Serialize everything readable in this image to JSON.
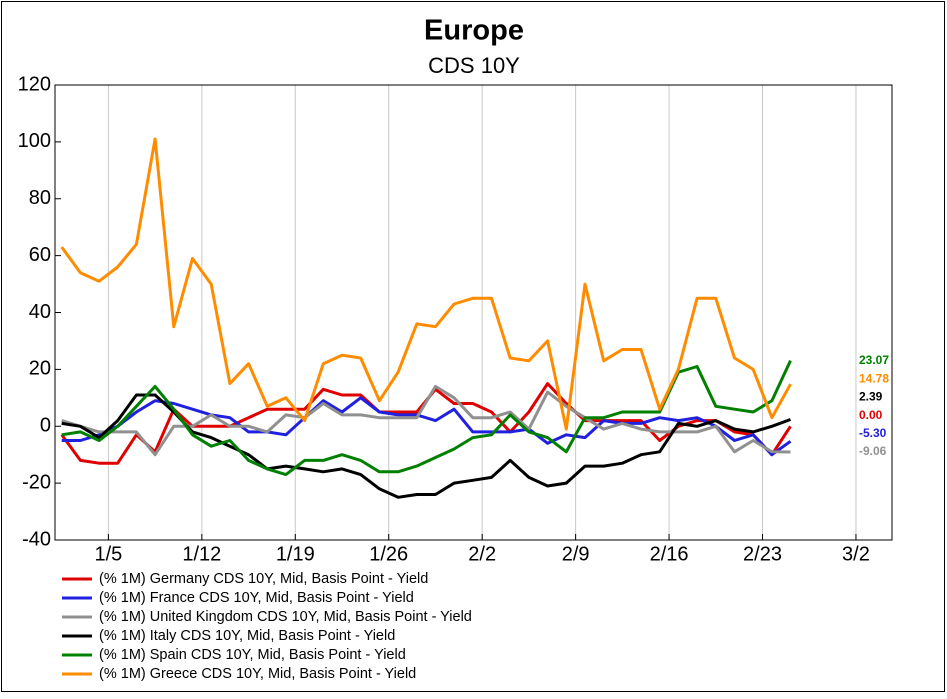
{
  "chart_data": {
    "type": "line",
    "title": "Europe",
    "subtitle": "CDS 10Y",
    "x": [
      1.5,
      2.9,
      4.3,
      5.7,
      7.1,
      8.5,
      9.9,
      11.3,
      12.7,
      14.1,
      15.5,
      16.9,
      18.3,
      19.7,
      21.1,
      22.5,
      23.9,
      25.3,
      26.7,
      28.1,
      29.5,
      30.9,
      32.3,
      33.7,
      35.1,
      36.5,
      37.9,
      39.3,
      40.7,
      42.1,
      43.5,
      44.9,
      46.3,
      47.7,
      49.1,
      50.5,
      51.9,
      53.3,
      54.7,
      56.1
    ],
    "xlim": [
      1,
      63.7
    ],
    "xticks": [
      {
        "value": 5,
        "label": "1/5"
      },
      {
        "value": 12,
        "label": "1/12"
      },
      {
        "value": 19,
        "label": "1/19"
      },
      {
        "value": 26,
        "label": "1/26"
      },
      {
        "value": 33,
        "label": "2/2"
      },
      {
        "value": 40,
        "label": "2/9"
      },
      {
        "value": 47,
        "label": "2/16"
      },
      {
        "value": 54,
        "label": "2/23"
      },
      {
        "value": 61,
        "label": "3/2"
      }
    ],
    "ylim": [
      -40,
      120
    ],
    "yticks": [
      -40,
      -20,
      0,
      20,
      40,
      60,
      80,
      100,
      120
    ],
    "grid": "x",
    "series": [
      {
        "name": "(% 1M) Germany CDS 10Y, Mid, Basis Point - Yield",
        "color": "#e00000",
        "end_label": "0.00",
        "values": [
          -3,
          -12,
          -13,
          -13,
          -3,
          -9,
          6,
          0,
          0,
          0,
          3,
          6,
          6,
          6,
          13,
          11,
          11,
          5,
          5,
          5,
          13,
          8,
          8,
          5,
          -2,
          5,
          15,
          8,
          2,
          2,
          2,
          2,
          -5,
          0,
          2,
          2,
          -2,
          -3,
          -10,
          0
        ]
      },
      {
        "name": "(% 1M) France CDS 10Y, Mid, Basis Point - Yield",
        "color": "#2020e0",
        "end_label": "-5.30",
        "values": [
          -5,
          -5,
          -3,
          0,
          5,
          9,
          8,
          6,
          4,
          3,
          -2,
          -2,
          -3,
          3,
          9,
          5,
          10,
          5,
          4,
          4,
          2,
          6,
          -2,
          -2,
          -2,
          -1,
          -6,
          -3,
          -4,
          2,
          1,
          1,
          3,
          2,
          3,
          0,
          -5,
          -3,
          -10,
          -5.3
        ]
      },
      {
        "name": "(% 1M) United Kingdom CDS 10Y, Mid, Basis Point - Yield",
        "color": "#909090",
        "end_label": "-9.06",
        "values": [
          2,
          0,
          -2,
          -2,
          -2,
          -10,
          0,
          0,
          4,
          0,
          0,
          -2,
          4,
          3,
          8,
          4,
          4,
          3,
          3,
          3,
          14,
          10,
          3,
          3,
          5,
          -1,
          12,
          7,
          3,
          -1,
          1,
          -1,
          -2,
          -2,
          -2,
          0,
          -9,
          -5,
          -9,
          -9.06
        ]
      },
      {
        "name": "(% 1M) Italy CDS 10Y, Mid, Basis Point - Yield",
        "color": "#000000",
        "end_label": "2.39",
        "values": [
          1,
          0,
          -4,
          2,
          11,
          11,
          5,
          -2,
          -4,
          -7,
          -10,
          -15,
          -14,
          -15,
          -16,
          -15,
          -17,
          -22,
          -25,
          -24,
          -24,
          -20,
          -19,
          -18,
          -12,
          -18,
          -21,
          -20,
          -14,
          -14,
          -13,
          -10,
          -9,
          1,
          0,
          2,
          -1,
          -2,
          0,
          2.39
        ]
      },
      {
        "name": "(% 1M) Spain CDS 10Y, Mid, Basis Point - Yield",
        "color": "#008000",
        "end_label": "23.07",
        "values": [
          -3,
          -2,
          -5,
          0,
          7,
          14,
          6,
          -3,
          -7,
          -5,
          -12,
          -15,
          -17,
          -12,
          -12,
          -10,
          -12,
          -16,
          -16,
          -14,
          -11,
          -8,
          -4,
          -3,
          4,
          -2,
          -4,
          -9,
          3,
          3,
          5,
          5,
          5,
          19,
          21,
          7,
          6,
          5,
          9,
          23.07
        ]
      },
      {
        "name": "(% 1M) Greece CDS 10Y, Mid, Basis Point - Yield",
        "color": "#ff8c00",
        "end_label": "14.78",
        "values": [
          63,
          54,
          51,
          56,
          64,
          101,
          35,
          59,
          50,
          15,
          22,
          7,
          10,
          2,
          22,
          25,
          24,
          9,
          19,
          36,
          35,
          43,
          45,
          45,
          24,
          23,
          30,
          -1,
          50,
          23,
          27,
          27,
          6,
          20,
          45,
          45,
          24,
          20,
          3,
          14.78
        ]
      }
    ]
  }
}
